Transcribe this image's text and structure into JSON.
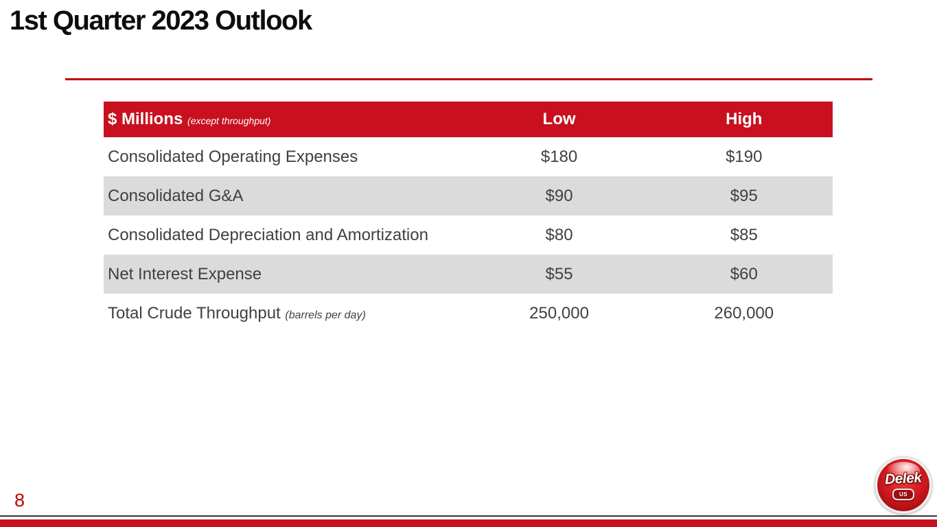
{
  "slide": {
    "title": "1st Quarter 2023 Outlook",
    "page_number": "8"
  },
  "colors": {
    "brand_red": "#c8101e",
    "divider_red": "#c00000",
    "band_gray": "#dbdbdb",
    "body_text": "#404040"
  },
  "table": {
    "header": {
      "label": "$ Millions",
      "label_note": "(except throughput)",
      "columns": [
        "Low",
        "High"
      ]
    },
    "rows": [
      {
        "label": "Consolidated Operating Expenses",
        "note": "",
        "low": "$180",
        "high": "$190"
      },
      {
        "label": "Consolidated G&A",
        "note": "",
        "low": "$90",
        "high": "$95"
      },
      {
        "label": "Consolidated Depreciation and Amortization",
        "note": "",
        "low": "$80",
        "high": "$85"
      },
      {
        "label": "Net Interest Expense",
        "note": "",
        "low": "$55",
        "high": "$60"
      },
      {
        "label": "Total Crude Throughput",
        "note": "(barrels per day)",
        "low": "250,000",
        "high": "260,000"
      }
    ]
  },
  "logo": {
    "brand": "Delek",
    "sub": "US"
  }
}
